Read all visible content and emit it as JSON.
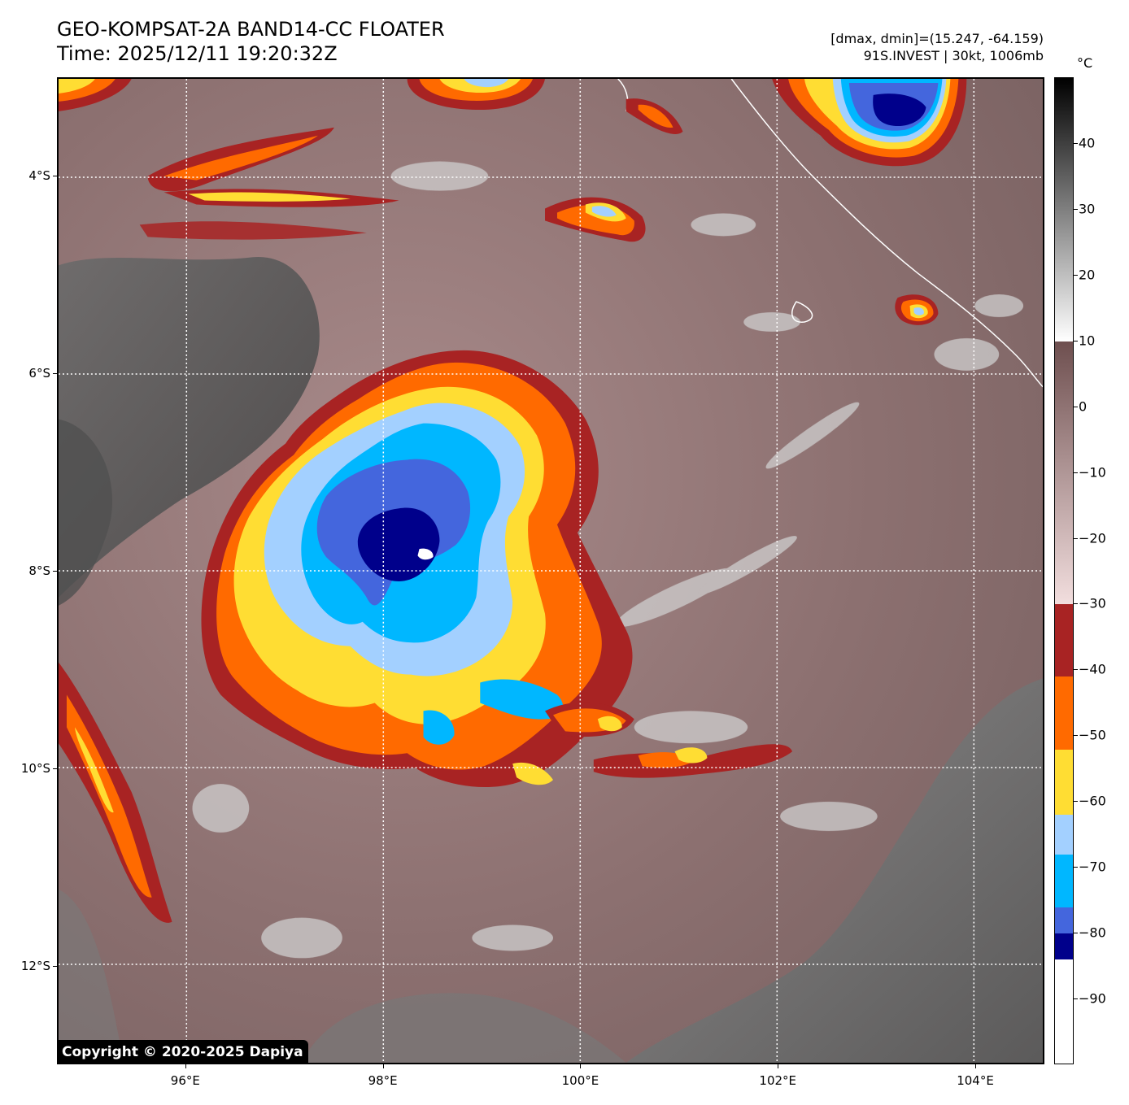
{
  "title": {
    "line1": "GEO-KOMPSAT-2A BAND14-CC FLOATER",
    "line2": "Time: 2025/12/11 19:20:32Z"
  },
  "info": {
    "line1": "[dmax, dmin]=(15.247, -64.159)",
    "line2": "91S.INVEST | 30kt, 1006mb"
  },
  "map": {
    "lat_labels": [
      "4°S",
      "6°S",
      "8°S",
      "10°S",
      "12°S"
    ],
    "lat_values": [
      -4,
      -6,
      -8,
      -10,
      -12
    ],
    "lon_labels": [
      "96°E",
      "98°E",
      "100°E",
      "102°E",
      "104°E"
    ],
    "lon_values": [
      96,
      98,
      100,
      102,
      104
    ],
    "lat_range": [
      -13.0,
      -3.0
    ],
    "lon_range": [
      94.7,
      104.7
    ],
    "storm_center": {
      "lon": 98.2,
      "lat": -7.9
    },
    "copyright": "Copyright © 2020-2025 Dapiya"
  },
  "colorbar": {
    "unit": "°C",
    "ticks": [
      "40",
      "30",
      "20",
      "10",
      "0",
      "−10",
      "−20",
      "−30",
      "−40",
      "−50",
      "−60",
      "−70",
      "−80",
      "−90"
    ],
    "tick_values": [
      40,
      30,
      20,
      10,
      0,
      -10,
      -20,
      -30,
      -40,
      -50,
      -60,
      -70,
      -80,
      -90
    ],
    "range": [
      -100,
      50
    ],
    "segments": [
      {
        "from": 10,
        "to": 50,
        "color_top": "#000000",
        "color_bottom": "#ffffff",
        "gradient": true
      },
      {
        "from": -30,
        "to": 10,
        "color_top": "#6e4f4f",
        "color_bottom": "#f2dede",
        "gradient": true
      },
      {
        "from": -41,
        "to": -30,
        "color": "#a82323"
      },
      {
        "from": -52,
        "to": -41,
        "color": "#ff6a00"
      },
      {
        "from": -62,
        "to": -52,
        "color": "#ffdd33"
      },
      {
        "from": -68,
        "to": -62,
        "color": "#a3d0ff"
      },
      {
        "from": -76,
        "to": -68,
        "color": "#00b7ff"
      },
      {
        "from": -80,
        "to": -76,
        "color": "#4466dd"
      },
      {
        "from": -84,
        "to": -80,
        "color": "#00008b"
      },
      {
        "from": -100,
        "to": -84,
        "color": "#ffffff"
      }
    ]
  }
}
